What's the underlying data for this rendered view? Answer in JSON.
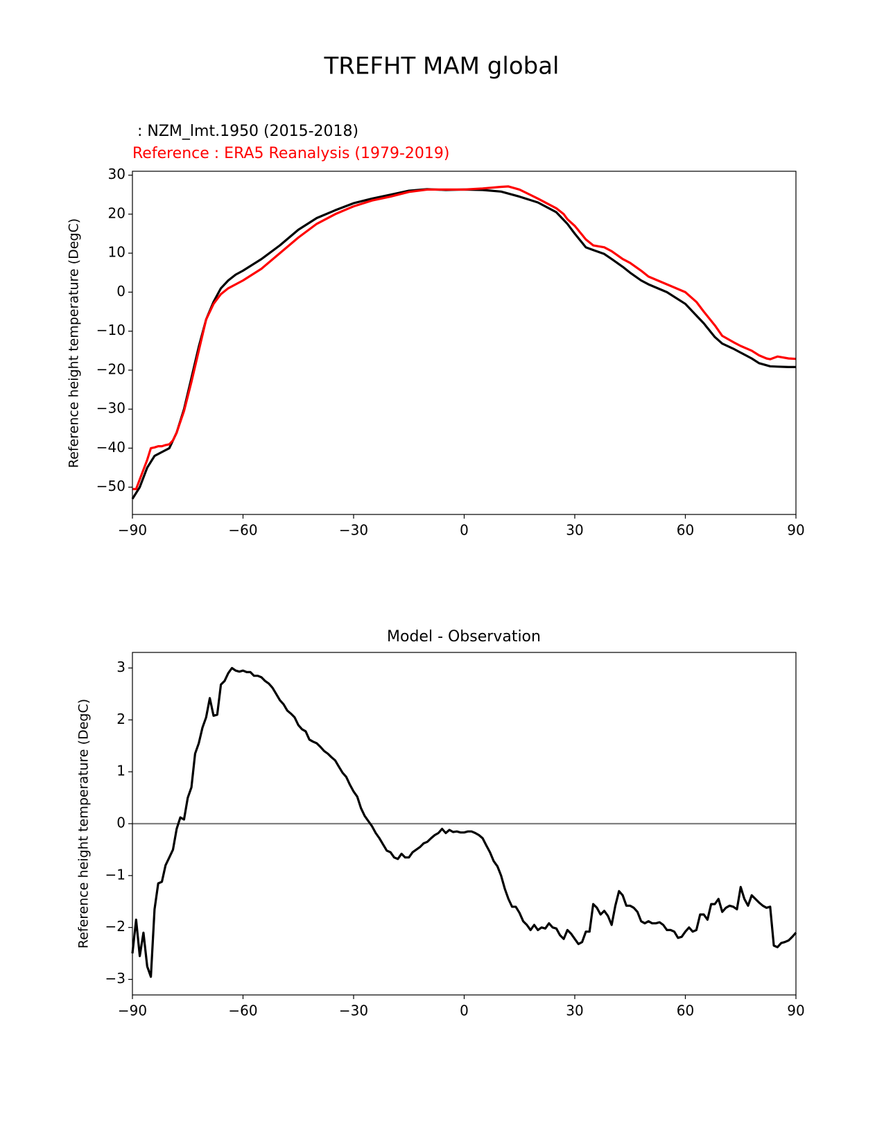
{
  "figure": {
    "title": "TREFHT MAM global"
  },
  "chart_data": [
    {
      "type": "line",
      "title_model": " : NZM_lmt.1950 (2015-2018)",
      "title_reference": "Reference : ERA5 Reanalysis (1979-2019)",
      "xlabel": "",
      "ylabel": "Reference height temperature (DegC)",
      "xlim": [
        -90,
        90
      ],
      "ylim": [
        -57,
        31
      ],
      "xticks": [
        -90,
        -60,
        -30,
        0,
        30,
        60,
        90
      ],
      "xtick_labels": [
        "−90",
        "−60",
        "−30",
        "0",
        "30",
        "60",
        "90"
      ],
      "yticks": [
        -50,
        -40,
        -30,
        -20,
        -10,
        0,
        10,
        20,
        30
      ],
      "ytick_labels": [
        "−50",
        "−40",
        "−30",
        "−20",
        "−10",
        "0",
        "10",
        "20",
        "30"
      ],
      "grid": false,
      "series": [
        {
          "name": "NZM_lmt.1950 (2015-2018)",
          "color": "#000000",
          "x": [
            -90,
            -88,
            -86,
            -84,
            -82,
            -80,
            -78,
            -76,
            -74,
            -72,
            -70,
            -68,
            -66,
            -64,
            -62,
            -60,
            -55,
            -50,
            -45,
            -40,
            -35,
            -30,
            -25,
            -20,
            -15,
            -10,
            -5,
            0,
            5,
            10,
            15,
            20,
            25,
            28,
            30,
            33,
            35,
            38,
            40,
            43,
            45,
            48,
            50,
            55,
            60,
            63,
            65,
            68,
            70,
            73,
            75,
            78,
            80,
            83,
            85,
            88,
            90
          ],
          "y": [
            -53,
            -50,
            -45,
            -42,
            -41,
            -40,
            -36,
            -30,
            -22,
            -14,
            -7,
            -2.5,
            1,
            3,
            4.5,
            5.5,
            8.5,
            12,
            16,
            19,
            21,
            22.8,
            24,
            25,
            26,
            26.4,
            26.2,
            26.3,
            26.2,
            25.8,
            24.5,
            23,
            20.5,
            17.5,
            15,
            11.5,
            10.8,
            9.8,
            8.5,
            6.5,
            5,
            3,
            2,
            0,
            -3,
            -6,
            -8,
            -11.5,
            -13.2,
            -14.5,
            -15.5,
            -17,
            -18.2,
            -19,
            -19.1,
            -19.2,
            -19.2
          ]
        },
        {
          "name": "ERA5 Reanalysis (1979-2019)",
          "color": "#ff0000",
          "x": [
            -90,
            -89,
            -88,
            -86,
            -85,
            -84,
            -83,
            -82,
            -81,
            -80,
            -79,
            -78,
            -76,
            -74,
            -72,
            -70,
            -68,
            -66,
            -64,
            -62,
            -60,
            -55,
            -50,
            -45,
            -40,
            -35,
            -30,
            -25,
            -20,
            -15,
            -10,
            -5,
            0,
            5,
            10,
            12,
            15,
            20,
            25,
            27,
            28,
            30,
            33,
            35,
            38,
            40,
            43,
            45,
            48,
            50,
            55,
            60,
            63,
            65,
            68,
            70,
            73,
            75,
            78,
            80,
            82,
            83,
            85,
            88,
            90
          ],
          "y": [
            -50.5,
            -50.5,
            -48,
            -43,
            -40,
            -39.8,
            -39.5,
            -39.5,
            -39.2,
            -39,
            -38,
            -36,
            -30.5,
            -23,
            -15,
            -7,
            -3,
            -0.5,
            1,
            2,
            3,
            6,
            10,
            14,
            17.5,
            20,
            22,
            23.5,
            24.5,
            25.7,
            26.3,
            26.3,
            26.3,
            26.6,
            27.0,
            27.1,
            26.3,
            24,
            21.5,
            20,
            18.7,
            17,
            13.5,
            12,
            11.5,
            10.5,
            8.5,
            7.5,
            5.5,
            4,
            2,
            0,
            -2.5,
            -5,
            -8.5,
            -11.2,
            -12.8,
            -13.8,
            -15,
            -16.2,
            -17,
            -17.2,
            -16.5,
            -17,
            -17.1
          ]
        }
      ]
    },
    {
      "type": "line",
      "title": "Model - Observation",
      "xlabel": "",
      "ylabel": "Reference height temperature (DegC)",
      "xlim": [
        -90,
        90
      ],
      "ylim": [
        -3.3,
        3.3
      ],
      "xticks": [
        -90,
        -60,
        -30,
        0,
        30,
        60,
        90
      ],
      "xtick_labels": [
        "−90",
        "−60",
        "−30",
        "0",
        "30",
        "60",
        "90"
      ],
      "yticks": [
        -3,
        -2,
        -1,
        0,
        1,
        2,
        3
      ],
      "ytick_labels": [
        "−3",
        "−2",
        "−1",
        "0",
        "1",
        "2",
        "3"
      ],
      "grid": false,
      "zero_line": {
        "y": 0,
        "color": "#808080"
      },
      "series": [
        {
          "name": "Model - Observation",
          "color": "#000000",
          "x": [
            -90,
            -89,
            -88,
            -87,
            -86,
            -85,
            -84,
            -83,
            -82,
            -81,
            -80,
            -79,
            -78,
            -77,
            -76,
            -75,
            -74,
            -73,
            -72,
            -71,
            -70,
            -69,
            -68,
            -67,
            -66,
            -65,
            -64,
            -63,
            -62,
            -61,
            -60,
            -59,
            -58,
            -57,
            -56,
            -55,
            -54,
            -53,
            -52,
            -51,
            -50,
            -49,
            -48,
            -47,
            -46,
            -45,
            -44,
            -43,
            -42,
            -41,
            -40,
            -39,
            -38,
            -37,
            -36,
            -35,
            -34,
            -33,
            -32,
            -31,
            -30,
            -29,
            -28,
            -27,
            -26,
            -25,
            -24,
            -23,
            -22,
            -21,
            -20,
            -19,
            -18,
            -17,
            -16,
            -15,
            -14,
            -13,
            -12,
            -11,
            -10,
            -9,
            -8,
            -7,
            -6,
            -5,
            -4,
            -3,
            -2,
            -1,
            0,
            1,
            2,
            3,
            4,
            5,
            6,
            7,
            8,
            9,
            10,
            11,
            12,
            13,
            14,
            15,
            16,
            17,
            18,
            19,
            20,
            21,
            22,
            23,
            24,
            25,
            26,
            27,
            28,
            29,
            30,
            31,
            32,
            33,
            34,
            35,
            36,
            37,
            38,
            39,
            40,
            41,
            42,
            43,
            44,
            45,
            46,
            47,
            48,
            49,
            50,
            51,
            52,
            53,
            54,
            55,
            56,
            57,
            58,
            59,
            60,
            61,
            62,
            63,
            64,
            65,
            66,
            67,
            68,
            69,
            70,
            71,
            72,
            73,
            74,
            75,
            76,
            77,
            78,
            79,
            80,
            81,
            82,
            83,
            84,
            85,
            86,
            87,
            88,
            89,
            90
          ],
          "y": [
            -2.5,
            -1.85,
            -2.55,
            -2.1,
            -2.75,
            -2.95,
            -1.65,
            -1.15,
            -1.12,
            -0.8,
            -0.65,
            -0.5,
            -0.1,
            0.12,
            0.08,
            0.5,
            0.7,
            1.35,
            1.55,
            1.85,
            2.05,
            2.42,
            2.08,
            2.1,
            2.68,
            2.75,
            2.9,
            3.0,
            2.95,
            2.93,
            2.95,
            2.92,
            2.92,
            2.85,
            2.85,
            2.82,
            2.75,
            2.7,
            2.62,
            2.5,
            2.38,
            2.3,
            2.18,
            2.12,
            2.05,
            1.9,
            1.82,
            1.78,
            1.62,
            1.58,
            1.55,
            1.48,
            1.4,
            1.35,
            1.28,
            1.22,
            1.1,
            0.98,
            0.9,
            0.75,
            0.62,
            0.52,
            0.3,
            0.15,
            0.05,
            -0.05,
            -0.18,
            -0.28,
            -0.4,
            -0.52,
            -0.55,
            -0.65,
            -0.68,
            -0.58,
            -0.65,
            -0.65,
            -0.55,
            -0.5,
            -0.45,
            -0.38,
            -0.35,
            -0.28,
            -0.22,
            -0.18,
            -0.1,
            -0.18,
            -0.12,
            -0.16,
            -0.15,
            -0.17,
            -0.17,
            -0.15,
            -0.15,
            -0.18,
            -0.22,
            -0.28,
            -0.42,
            -0.55,
            -0.72,
            -0.82,
            -1.0,
            -1.25,
            -1.45,
            -1.6,
            -1.6,
            -1.72,
            -1.88,
            -1.95,
            -2.05,
            -1.95,
            -2.05,
            -2.0,
            -2.02,
            -1.92,
            -2.0,
            -2.02,
            -2.15,
            -2.22,
            -2.05,
            -2.12,
            -2.22,
            -2.32,
            -2.28,
            -2.08,
            -2.08,
            -1.55,
            -1.62,
            -1.75,
            -1.68,
            -1.78,
            -1.95,
            -1.58,
            -1.3,
            -1.38,
            -1.58,
            -1.58,
            -1.62,
            -1.7,
            -1.88,
            -1.92,
            -1.88,
            -1.92,
            -1.92,
            -1.9,
            -1.95,
            -2.05,
            -2.05,
            -2.08,
            -2.2,
            -2.18,
            -2.08,
            -2.0,
            -2.08,
            -2.05,
            -1.75,
            -1.75,
            -1.85,
            -1.55,
            -1.55,
            -1.45,
            -1.7,
            -1.62,
            -1.58,
            -1.6,
            -1.65,
            -1.22,
            -1.45,
            -1.58,
            -1.38,
            -1.45,
            -1.52,
            -1.58,
            -1.62,
            -1.6,
            -2.35,
            -2.38,
            -2.3,
            -2.28,
            -2.25,
            -2.18,
            -2.1
          ]
        }
      ]
    }
  ]
}
